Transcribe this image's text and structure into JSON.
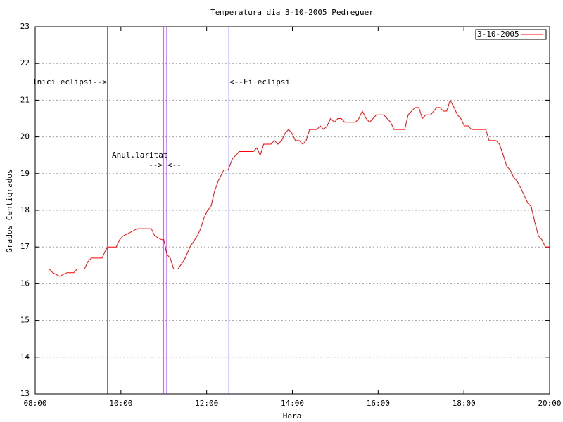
{
  "chart_data": {
    "type": "line",
    "title": "Temperatura dia 3-10-2005 Pedreguer",
    "xlabel": "Hora",
    "ylabel": "Grados Centigrados",
    "xlim": [
      8,
      20
    ],
    "xticks": [
      {
        "value": 8,
        "label": "08:00"
      },
      {
        "value": 10,
        "label": "10:00"
      },
      {
        "value": 12,
        "label": "12:00"
      },
      {
        "value": 14,
        "label": "14:00"
      },
      {
        "value": 16,
        "label": "16:00"
      },
      {
        "value": 18,
        "label": "18:00"
      },
      {
        "value": 20,
        "label": "20:00"
      }
    ],
    "ylim": [
      13,
      23
    ],
    "yticks": [
      13,
      14,
      15,
      16,
      17,
      18,
      19,
      20,
      21,
      22,
      23
    ],
    "grid": true,
    "legend": "top-right",
    "x": [
      8.0,
      8.33,
      8.41,
      8.57,
      8.74,
      8.9,
      8.98,
      9.15,
      9.23,
      9.31,
      9.56,
      9.64,
      9.69,
      9.89,
      9.97,
      10.05,
      10.22,
      10.38,
      10.71,
      10.79,
      10.95,
      11.0,
      11.07,
      11.15,
      11.23,
      11.33,
      11.45,
      11.5,
      11.61,
      11.78,
      11.86,
      11.94,
      12.02,
      12.1,
      12.18,
      12.27,
      12.4,
      12.5,
      12.6,
      12.68,
      12.76,
      13.01,
      13.09,
      13.17,
      13.25,
      13.33,
      13.5,
      13.58,
      13.66,
      13.75,
      13.83,
      13.91,
      13.99,
      14.07,
      14.16,
      14.24,
      14.32,
      14.4,
      14.57,
      14.65,
      14.73,
      14.81,
      14.89,
      14.98,
      15.06,
      15.14,
      15.22,
      15.39,
      15.47,
      15.55,
      15.63,
      15.72,
      15.8,
      15.88,
      15.96,
      16.13,
      16.21,
      16.29,
      16.37,
      16.54,
      16.62,
      16.7,
      16.86,
      16.95,
      17.03,
      17.11,
      17.23,
      17.36,
      17.44,
      17.52,
      17.6,
      17.68,
      17.77,
      17.85,
      17.93,
      18.01,
      18.1,
      18.18,
      18.51,
      18.59,
      18.75,
      18.83,
      18.92,
      19.0,
      19.08,
      19.16,
      19.24,
      19.33,
      19.41,
      19.49,
      19.57,
      19.65,
      19.74,
      19.82,
      19.9,
      20.0
    ],
    "series": [
      {
        "name": "3-10-2005",
        "color": "#ff0000",
        "values": [
          16.4,
          16.4,
          16.3,
          16.2,
          16.3,
          16.3,
          16.4,
          16.4,
          16.6,
          16.7,
          16.7,
          16.9,
          17.0,
          17.0,
          17.2,
          17.3,
          17.4,
          17.5,
          17.5,
          17.3,
          17.2,
          17.2,
          16.8,
          16.7,
          16.4,
          16.4,
          16.6,
          16.7,
          17.0,
          17.3,
          17.5,
          17.8,
          18.0,
          18.1,
          18.5,
          18.8,
          19.1,
          19.1,
          19.4,
          19.5,
          19.6,
          19.6,
          19.6,
          19.7,
          19.5,
          19.8,
          19.8,
          19.9,
          19.8,
          19.9,
          20.1,
          20.2,
          20.1,
          19.9,
          19.9,
          19.8,
          19.9,
          20.2,
          20.2,
          20.3,
          20.2,
          20.3,
          20.5,
          20.4,
          20.5,
          20.5,
          20.4,
          20.4,
          20.4,
          20.5,
          20.7,
          20.5,
          20.4,
          20.5,
          20.6,
          20.6,
          20.5,
          20.4,
          20.2,
          20.2,
          20.2,
          20.6,
          20.8,
          20.8,
          20.5,
          20.6,
          20.6,
          20.8,
          20.8,
          20.7,
          20.7,
          21.0,
          20.8,
          20.6,
          20.5,
          20.3,
          20.3,
          20.2,
          20.2,
          19.9,
          19.9,
          19.8,
          19.5,
          19.2,
          19.1,
          18.9,
          18.8,
          18.6,
          18.4,
          18.2,
          18.1,
          17.7,
          17.3,
          17.2,
          17.0,
          17.0
        ]
      }
    ],
    "vlines": [
      {
        "x": 9.69,
        "color": "#000080"
      },
      {
        "x": 10.99,
        "color": "#a020f0"
      },
      {
        "x": 11.07,
        "color": "#a020f0"
      },
      {
        "x": 12.52,
        "color": "#000080"
      }
    ],
    "annotations": [
      "Inici eclipsi-->",
      "<--Fi eclipsi",
      "Anul.laritat",
      "-->",
      "<--"
    ]
  }
}
